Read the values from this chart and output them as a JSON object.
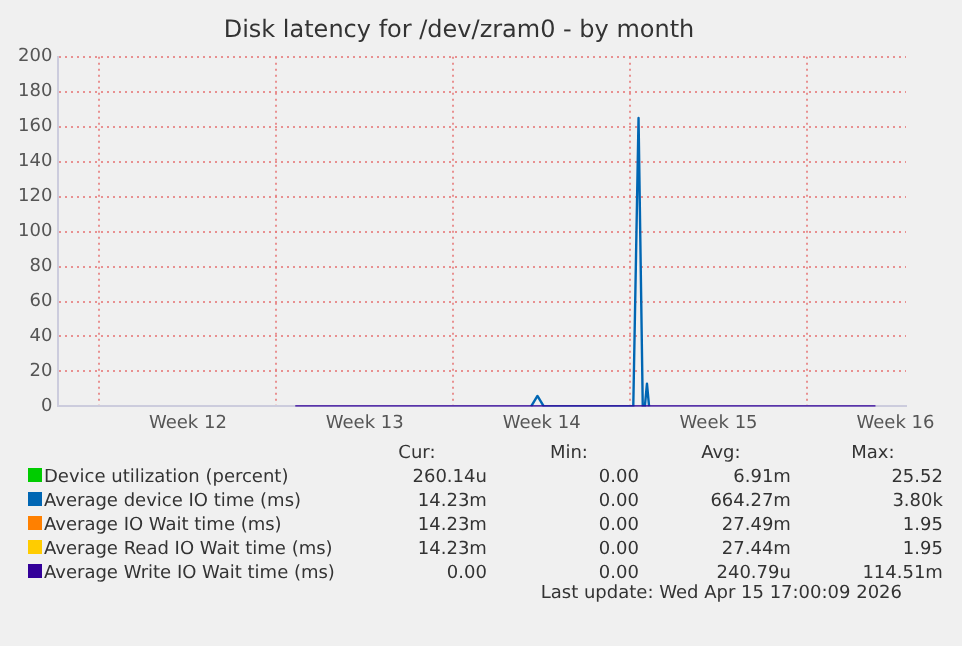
{
  "chart_data": {
    "type": "line",
    "title": "Disk latency for /dev/zram0 - by month",
    "x": [
      "2026-03-23T18:00",
      "2026-04-02T02:00",
      "2026-04-02T08:00",
      "2026-04-02T14:00",
      "2026-04-06T03:00",
      "2026-04-06T08:00",
      "2026-04-06T12:00",
      "2026-04-06T14:00",
      "2026-04-06T16:00",
      "2026-04-06T18:00",
      "2026-04-15T17:00"
    ],
    "series": [
      {
        "name": "Device utilization (percent)",
        "color": "#00cc00",
        "values": [
          null,
          null,
          null,
          null,
          null,
          null,
          null,
          null,
          null,
          null,
          null
        ]
      },
      {
        "name": "Average device IO time (ms)",
        "color": "#0066b3",
        "values": [
          null,
          0,
          6,
          0,
          0,
          165,
          0,
          0,
          13,
          0,
          null
        ]
      },
      {
        "name": "Average IO Wait time (ms)",
        "color": "#ff8000",
        "values": [
          null,
          null,
          null,
          null,
          null,
          null,
          null,
          null,
          null,
          null,
          null
        ]
      },
      {
        "name": "Average Read IO Wait time (ms)",
        "color": "#ffcc00",
        "values": [
          null,
          null,
          null,
          null,
          null,
          null,
          null,
          null,
          null,
          null,
          null
        ]
      },
      {
        "name": "Average Write IO Wait time (ms)",
        "color": "#330099",
        "values": [
          0,
          0,
          0,
          0,
          0,
          0,
          0,
          0,
          0,
          0,
          0
        ]
      }
    ],
    "xlim": [
      "2026-03-14T09:00",
      "2026-04-16T22:00"
    ],
    "xticks": [
      {
        "value": "2026-03-16",
        "label": null
      },
      {
        "value": "2026-03-19T12:00",
        "label": "Week 12"
      },
      {
        "value": "2026-03-23",
        "label": null
      },
      {
        "value": "2026-03-26T12:00",
        "label": "Week 13"
      },
      {
        "value": "2026-03-30",
        "label": null
      },
      {
        "value": "2026-04-02T12:00",
        "label": "Week 14"
      },
      {
        "value": "2026-04-06",
        "label": null
      },
      {
        "value": "2026-04-09T12:00",
        "label": "Week 15"
      },
      {
        "value": "2026-04-13",
        "label": null
      },
      {
        "value": "2026-04-16T12:00",
        "label": "Week 16"
      }
    ],
    "ylim": [
      0,
      200
    ],
    "yticks": [
      0,
      20,
      40,
      60,
      80,
      100,
      120,
      140,
      160,
      180,
      200
    ],
    "grid": true,
    "legend": "bottom",
    "marker": "none",
    "line_style": "solid",
    "annotations": [
      "Cur:",
      "Min:",
      "Avg:",
      "Max:",
      "260.14u",
      "0.00",
      "6.91m",
      "25.52",
      "14.23m",
      "0.00",
      "664.27m",
      "3.80k",
      "14.23m",
      "0.00",
      "27.49m",
      "1.95",
      "14.23m",
      "0.00",
      "27.44m",
      "1.95",
      "0.00",
      "0.00",
      "240.79u",
      "114.51m",
      "Last update: Wed Apr 15 17:00:09 2026"
    ]
  }
}
